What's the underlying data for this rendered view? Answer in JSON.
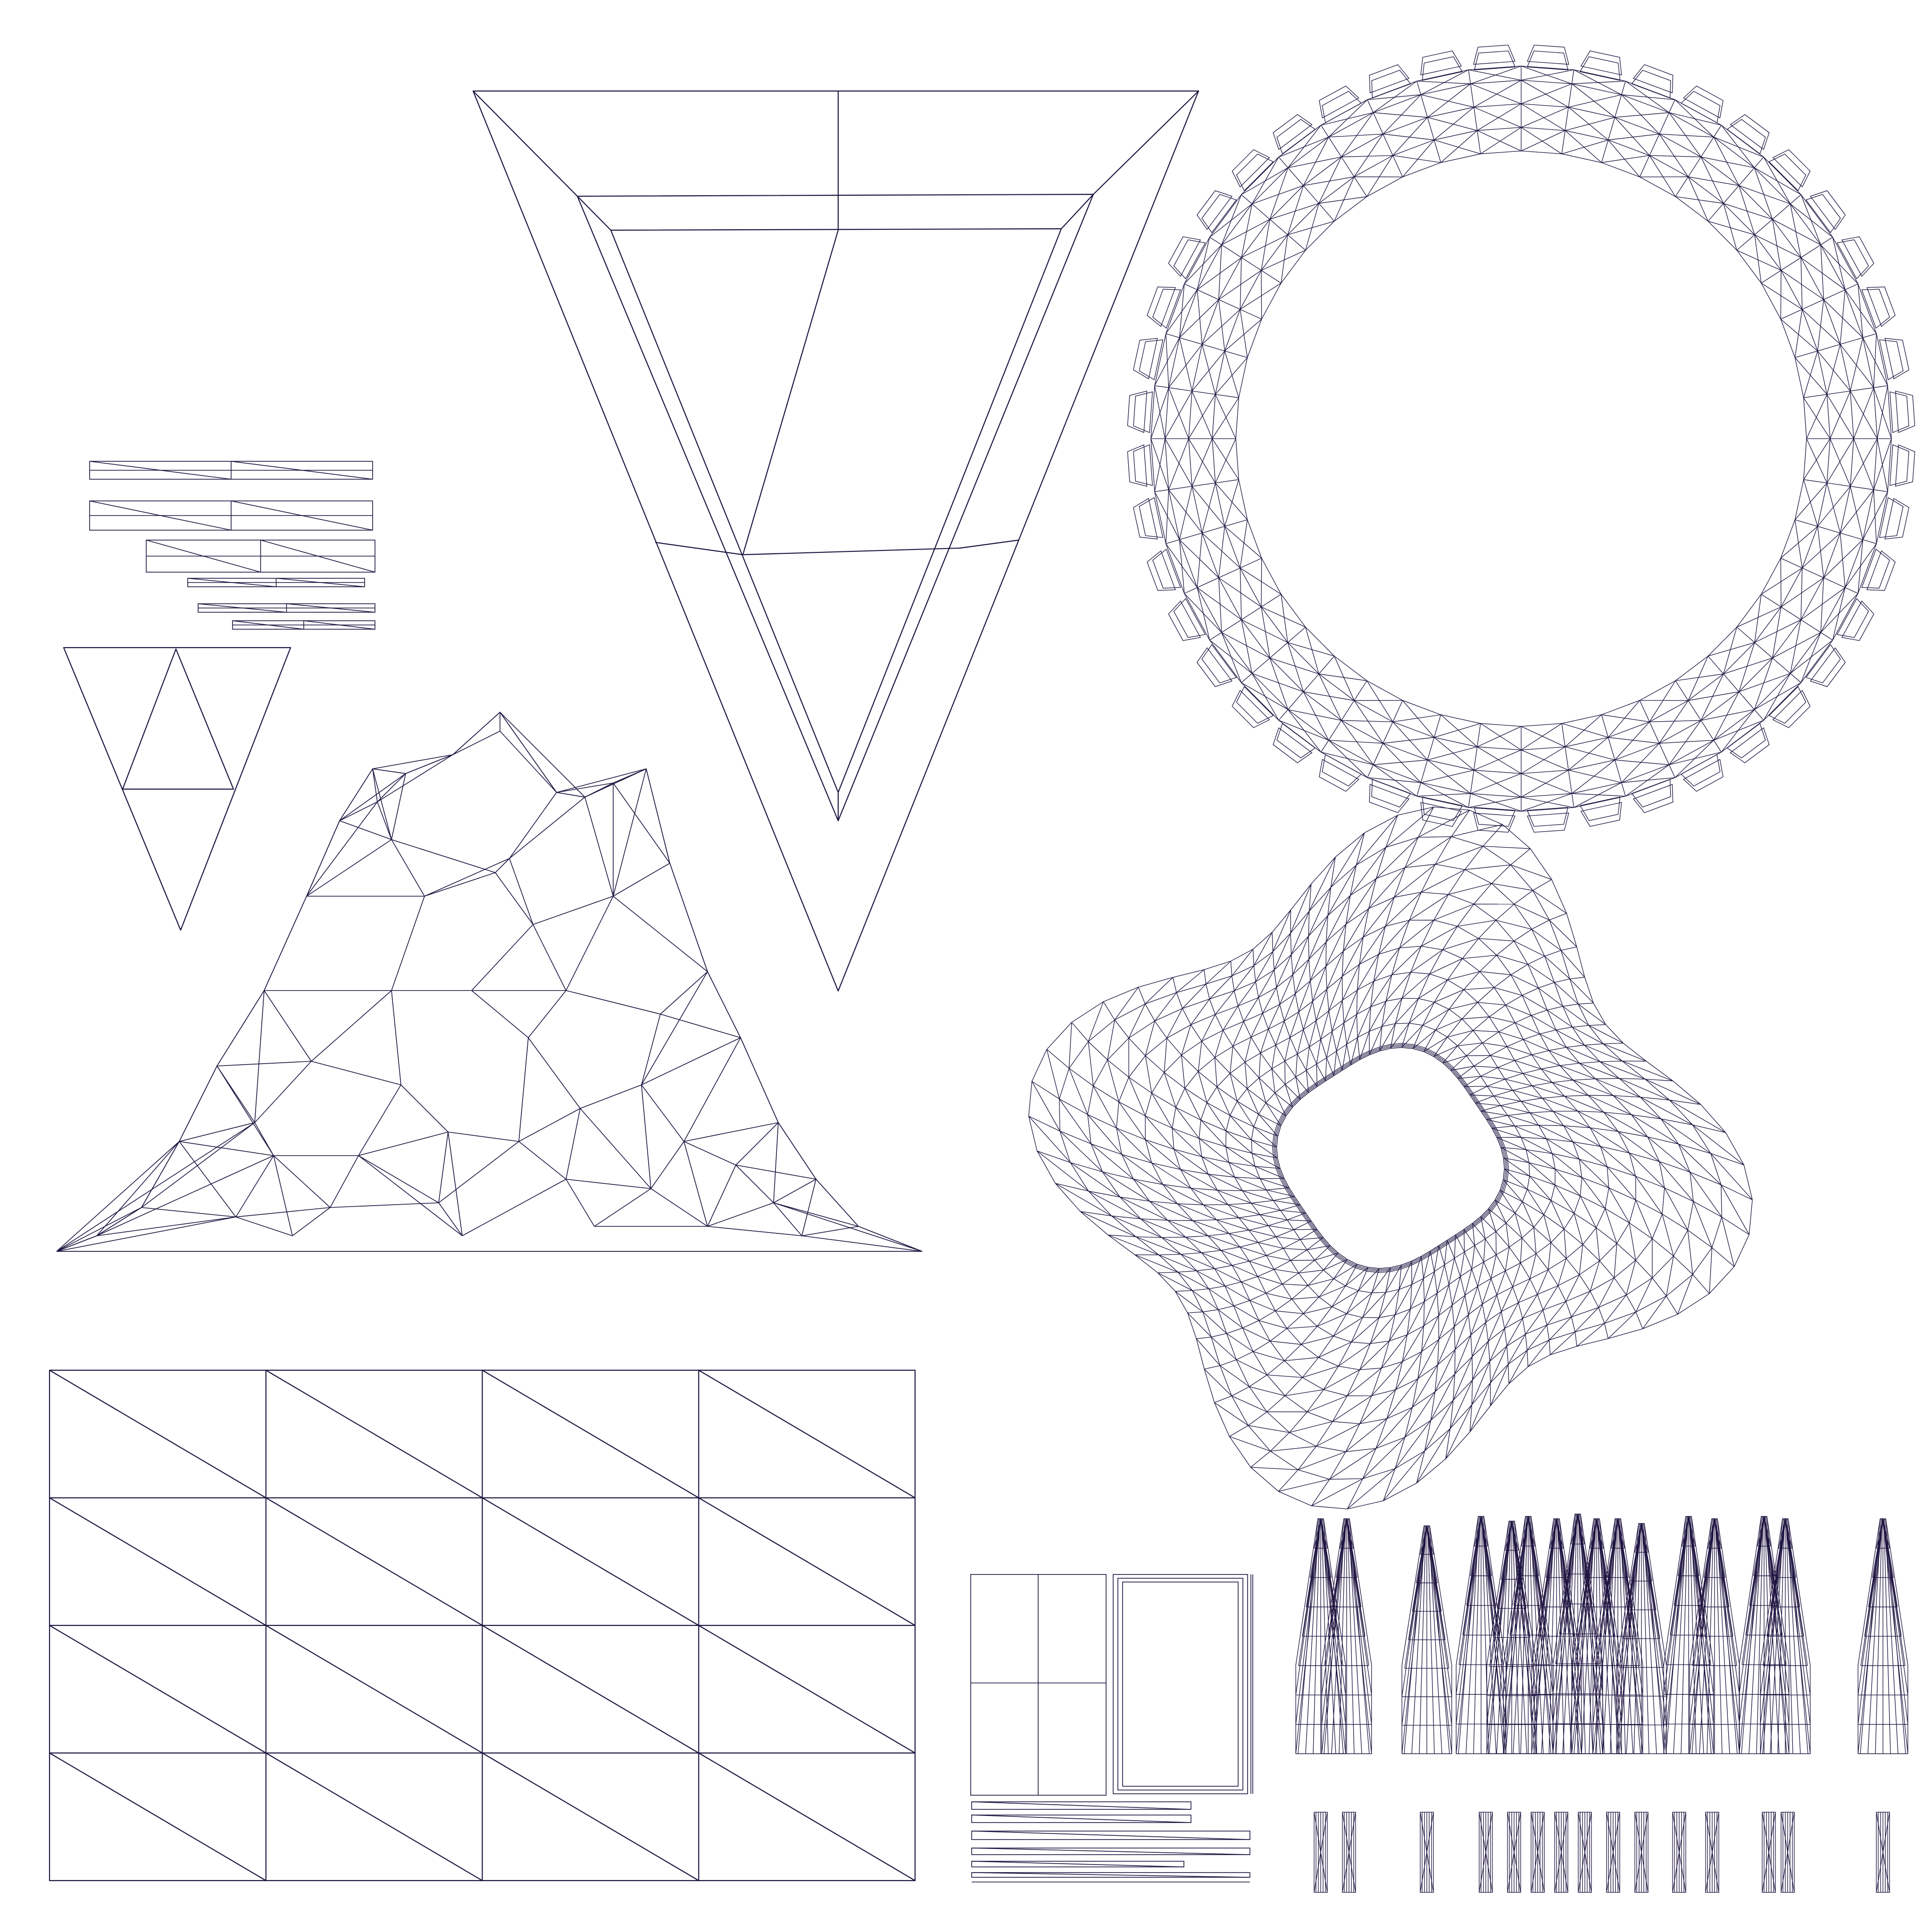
{
  "image": {
    "background": "#ffffff",
    "wire_color": "#1e1440"
  },
  "islands": [
    "inverted-triangle-island",
    "tire-ring-island",
    "small-strips-island",
    "small-triangle-island",
    "rock-mesh-island",
    "disc-ring-island",
    "grid-plane-island",
    "box-panels-island",
    "spike-row-island",
    "short-spike-row-island"
  ]
}
